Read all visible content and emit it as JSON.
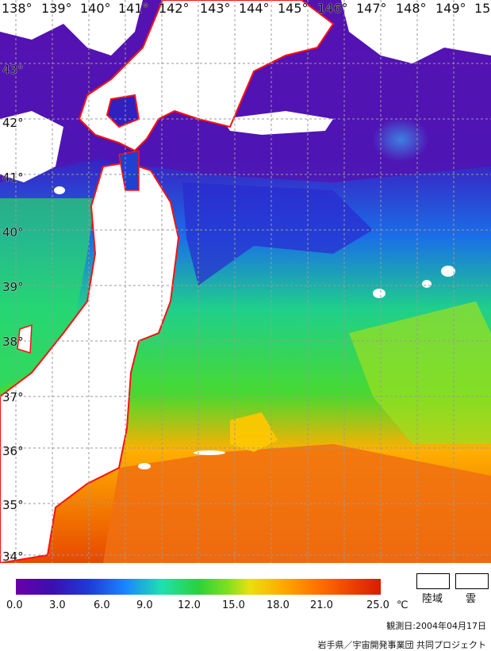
{
  "map": {
    "longitude_labels": [
      "138°",
      "139°",
      "140°",
      "141°",
      "142°",
      "143°",
      "144°",
      "145°",
      "146°",
      "147°",
      "148°",
      "149°",
      "15"
    ],
    "latitude_labels": [
      "43°",
      "42°",
      "41°",
      "40°",
      "39°",
      "38°",
      "37°",
      "36°",
      "35°",
      "34°"
    ],
    "colors": {
      "land": "#ffffff",
      "coastline": "#ff1010",
      "grid": "#9a9a9a"
    }
  },
  "legend": {
    "ticks": [
      "0.0",
      "3.0",
      "6.0",
      "9.0",
      "12.0",
      "15.0",
      "18.0",
      "21.0",
      "25.0"
    ],
    "unit": "℃",
    "land_label": "陸域",
    "cloud_label": "雲"
  },
  "caption": {
    "date": "観測日:2004年04月17日",
    "credit": "岩手県／宇宙開発事業団 共同プロジェクト"
  }
}
